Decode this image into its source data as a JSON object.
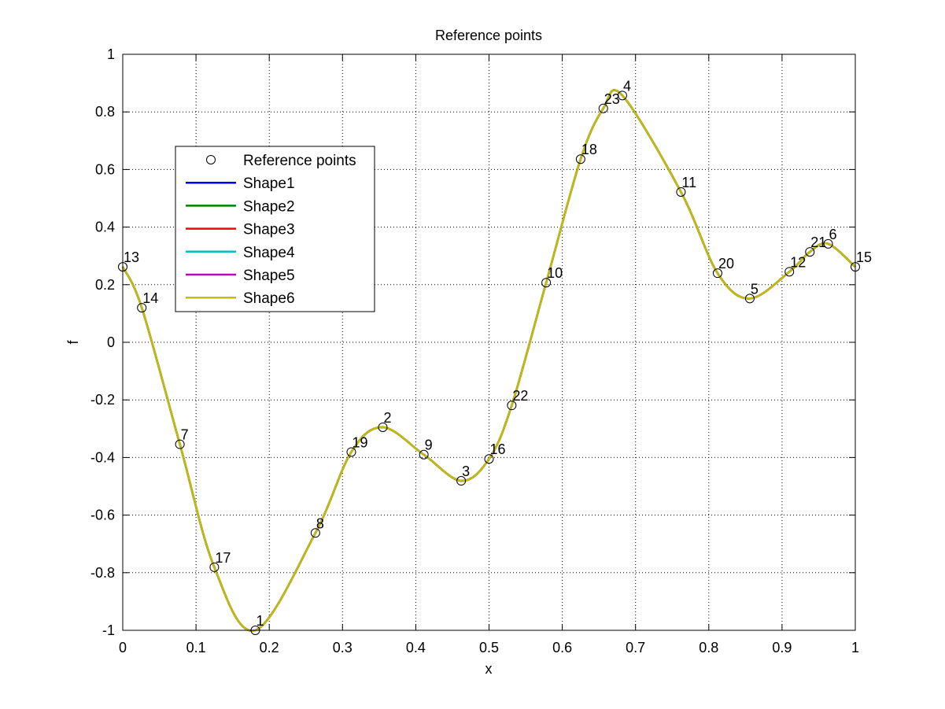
{
  "chart_data": {
    "type": "line",
    "title": "Reference points",
    "xlabel": "x",
    "ylabel": "f",
    "xlim": [
      0,
      1
    ],
    "ylim": [
      -1,
      1
    ],
    "grid": true,
    "legend_position": "upper-left",
    "xticks": [
      "0",
      "0.1",
      "0.2",
      "0.3",
      "0.4",
      "0.5",
      "0.6",
      "0.7",
      "0.8",
      "0.9",
      "1"
    ],
    "yticks": [
      "-1",
      "-0.8",
      "-0.6",
      "-0.4",
      "-0.2",
      "0",
      "0.2",
      "0.4",
      "0.6",
      "0.8",
      "1"
    ],
    "reference_points": {
      "name": "Reference points",
      "points": [
        {
          "label": "13",
          "x": 0.0,
          "y": 0.262
        },
        {
          "label": "14",
          "x": 0.026,
          "y": 0.12
        },
        {
          "label": "7",
          "x": 0.078,
          "y": -0.354
        },
        {
          "label": "17",
          "x": 0.125,
          "y": -0.781
        },
        {
          "label": "1",
          "x": 0.181,
          "y": -1.0
        },
        {
          "label": "8",
          "x": 0.263,
          "y": -0.662
        },
        {
          "label": "19",
          "x": 0.312,
          "y": -0.381
        },
        {
          "label": "2",
          "x": 0.355,
          "y": -0.295
        },
        {
          "label": "9",
          "x": 0.411,
          "y": -0.39
        },
        {
          "label": "3",
          "x": 0.462,
          "y": -0.481
        },
        {
          "label": "16",
          "x": 0.5,
          "y": -0.405
        },
        {
          "label": "22",
          "x": 0.531,
          "y": -0.219
        },
        {
          "label": "10",
          "x": 0.578,
          "y": 0.207
        },
        {
          "label": "18",
          "x": 0.625,
          "y": 0.636
        },
        {
          "label": "23",
          "x": 0.656,
          "y": 0.812
        },
        {
          "label": "4",
          "x": 0.682,
          "y": 0.857
        },
        {
          "label": "11",
          "x": 0.762,
          "y": 0.522
        },
        {
          "label": "20",
          "x": 0.812,
          "y": 0.24
        },
        {
          "label": "5",
          "x": 0.856,
          "y": 0.152
        },
        {
          "label": "12",
          "x": 0.91,
          "y": 0.245
        },
        {
          "label": "21",
          "x": 0.938,
          "y": 0.314
        },
        {
          "label": "6",
          "x": 0.963,
          "y": 0.342
        },
        {
          "label": "15",
          "x": 1.0,
          "y": 0.262
        }
      ]
    },
    "series": [
      {
        "name": "Shape1",
        "color": "#0000ff"
      },
      {
        "name": "Shape2",
        "color": "#008000"
      },
      {
        "name": "Shape3",
        "color": "#ff0000"
      },
      {
        "name": "Shape4",
        "color": "#00bfbf"
      },
      {
        "name": "Shape5",
        "color": "#bf00bf"
      },
      {
        "name": "Shape6",
        "color": "#bfbf00"
      }
    ]
  }
}
